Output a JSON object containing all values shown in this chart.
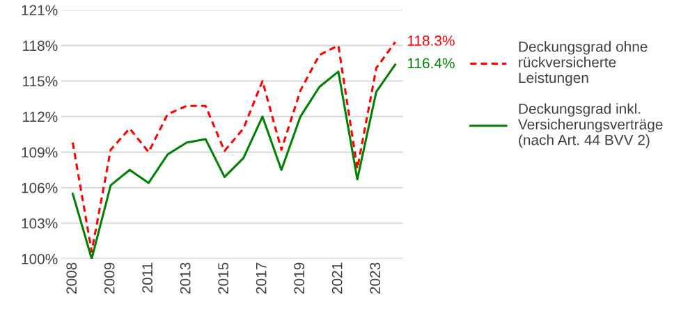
{
  "chart_data": {
    "type": "line",
    "categories": [
      "2008",
      null,
      "2009",
      null,
      "2011",
      null,
      "2013",
      null,
      "2015",
      null,
      "2017",
      null,
      "2019",
      null,
      "2021",
      null,
      "2023",
      null
    ],
    "series": [
      {
        "name": "Deckungsgrad ohne rückversicherte Leistungen",
        "color": "#ff0000",
        "line_style": "dashed",
        "values": [
          109.8,
          100.6,
          109.2,
          111.0,
          109.0,
          112.2,
          112.9,
          112.9,
          109.1,
          111.0,
          115.0,
          109.2,
          114.2,
          117.2,
          118.0,
          107.6,
          116.1,
          118.3
        ],
        "value_labels": [
          null,
          null,
          null,
          null,
          null,
          null,
          null,
          null,
          null,
          null,
          null,
          null,
          null,
          null,
          null,
          null,
          null,
          "118.3%"
        ]
      },
      {
        "name": "Deckungsgrad inkl. Versicherungsverträge (nach Art. 44 BVV 2)",
        "color": "#008000",
        "line_style": "solid",
        "values": [
          105.5,
          100.0,
          106.2,
          107.5,
          106.4,
          108.8,
          109.8,
          110.1,
          106.9,
          108.5,
          112.0,
          107.5,
          112.0,
          114.5,
          115.8,
          106.7,
          114.1,
          116.4
        ],
        "value_labels": [
          null,
          null,
          null,
          null,
          null,
          null,
          null,
          null,
          null,
          null,
          null,
          null,
          null,
          null,
          null,
          null,
          null,
          "116.4%"
        ]
      }
    ],
    "ylim": [
      100,
      121
    ],
    "yticks": [
      {
        "value": 100,
        "label": "100%"
      },
      {
        "value": 103,
        "label": "103%"
      },
      {
        "value": 106,
        "label": "106%"
      },
      {
        "value": 109,
        "label": "109%"
      },
      {
        "value": 112,
        "label": "112%"
      },
      {
        "value": 115,
        "label": "115%"
      },
      {
        "value": 118,
        "label": "118%"
      },
      {
        "value": 121,
        "label": "121%"
      }
    ],
    "grid": "y",
    "legend": "right",
    "marker": "none"
  }
}
